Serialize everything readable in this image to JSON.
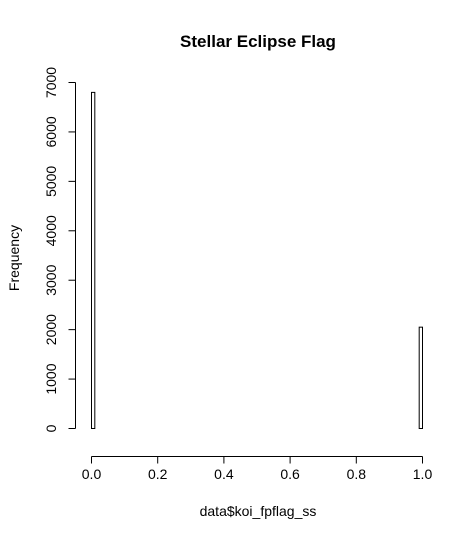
{
  "chart_data": {
    "type": "bar",
    "title": "Stellar Eclipse Flag",
    "xlabel": "data$koi_fpflag_ss",
    "ylabel": "Frequency",
    "xlim": [
      0,
      1
    ],
    "ylim": [
      0,
      7000
    ],
    "x_ticks": [
      0,
      0.2,
      0.4,
      0.6,
      0.8,
      1
    ],
    "x_tick_labels": [
      "0.0",
      "0.2",
      "0.4",
      "0.6",
      "0.8",
      "1.0"
    ],
    "y_ticks": [
      0,
      1000,
      2000,
      3000,
      4000,
      5000,
      6000,
      7000
    ],
    "y_tick_labels": [
      "0",
      "1000",
      "2000",
      "3000",
      "4000",
      "5000",
      "6000",
      "7000"
    ],
    "bins": [
      {
        "from": 0.0,
        "to": 0.01,
        "value": 6800
      },
      {
        "from": 0.01,
        "to": 0.99,
        "value": 0
      },
      {
        "from": 0.99,
        "to": 1.0,
        "value": 2050
      }
    ],
    "grid": false,
    "legend": "none"
  }
}
